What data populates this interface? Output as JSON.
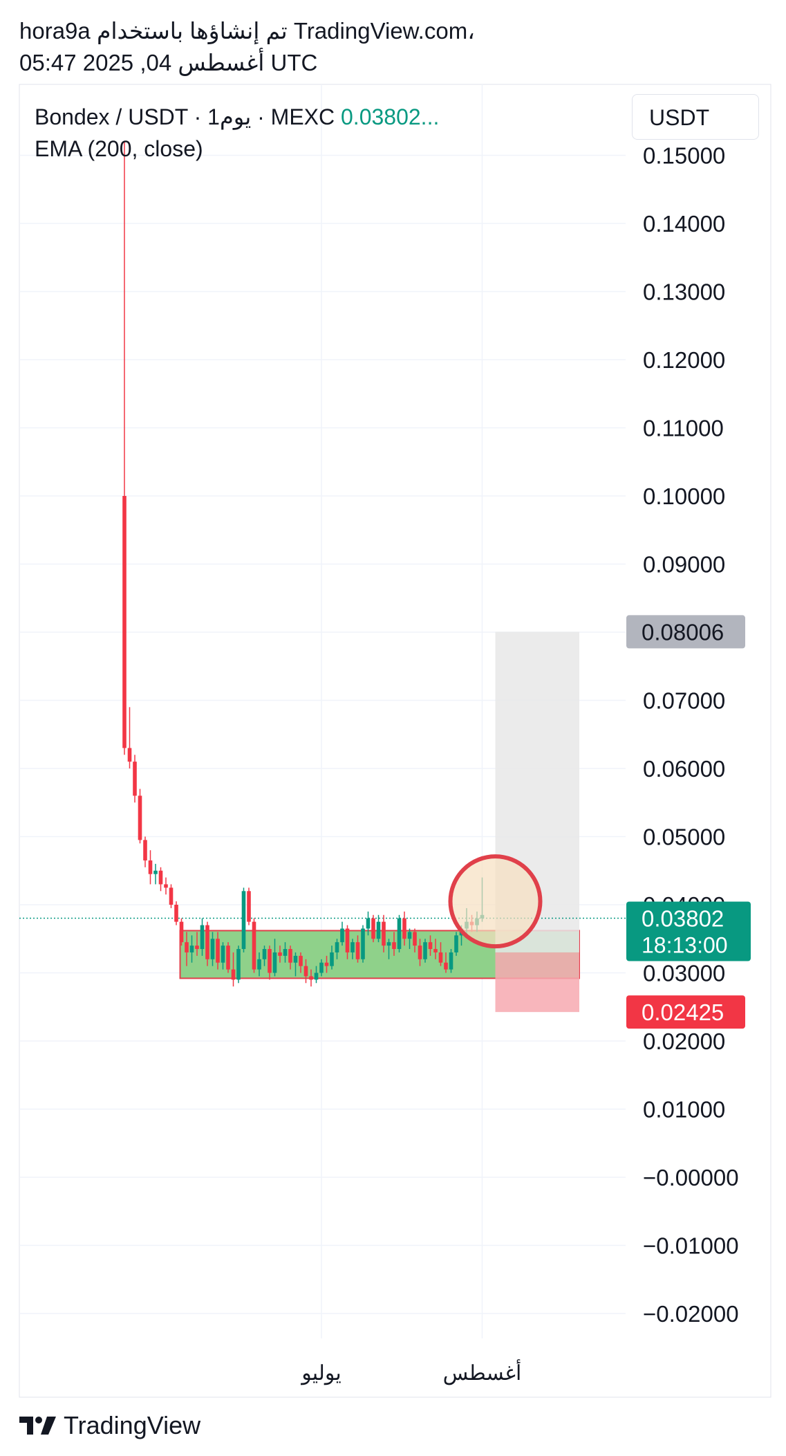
{
  "header": {
    "line1": "hora9a تم إنشاؤها باستخدام TradingView.com،",
    "line2": "05:47 2025 ,04 أغسطس UTC"
  },
  "legend": {
    "symbol": "Bondex / USDT · 1يوم · MEXC",
    "price": "0.03802...",
    "indicator": "EMA (200, close)"
  },
  "unit_selector": "USDT",
  "footer": {
    "brand": "TradingView",
    "logo": "tradingview-logo-icon"
  },
  "colors": {
    "up": "#089981",
    "down": "#f23645",
    "zone_fill": "#8fd18a",
    "zone_border": "#e0404a",
    "target_fill": "#e8e8e8",
    "stop_fill": "#f7a9b0",
    "circle": "#f7e0c0",
    "grid": "#f0f3fa"
  },
  "chart_data": {
    "type": "candlestick",
    "y_axis": {
      "ylim": [
        -0.025,
        0.155
      ],
      "ticks": [
        0.15,
        0.14,
        0.13,
        0.12,
        0.11,
        0.1,
        0.09,
        0.08,
        0.07,
        0.06,
        0.05,
        0.04,
        0.03,
        0.02,
        0.01,
        0.0,
        -0.01,
        -0.02
      ],
      "tick_labels": [
        "0.15000",
        "0.14000",
        "0.13000",
        "0.12000",
        "0.11000",
        "0.10000",
        "0.09000",
        "0.08000",
        "0.07000",
        "0.06000",
        "0.05000",
        "0.04000",
        "0.03000",
        "0.02000",
        "0.01000",
        "−0.00000",
        "−0.01000",
        "−0.02000"
      ]
    },
    "x_axis": {
      "labels": [
        {
          "text": "يوليو",
          "index": 38
        },
        {
          "text": "أغسطس",
          "index": 69
        }
      ],
      "visible_bars": 93
    },
    "price_labels": [
      {
        "value": 0.08006,
        "text": "0.08006",
        "kind": "target"
      },
      {
        "value": 0.03802,
        "text": "0.03802",
        "sub": "18:13:00",
        "kind": "current"
      },
      {
        "value": 0.02425,
        "text": "0.02425",
        "kind": "stop"
      }
    ],
    "current_price": 0.03802,
    "accumulation_zone": {
      "start_index": 11,
      "end_index": 93,
      "top": 0.0362,
      "bottom": 0.0292
    },
    "position": {
      "start_index": 71,
      "end_index": 83,
      "entry": 0.033,
      "target": 0.08006,
      "stop": 0.02425
    },
    "highlight": {
      "index": 71,
      "price": 0.041
    },
    "candles": [
      {
        "o": 0.1,
        "h": 0.152,
        "l": 0.062,
        "c": 0.063
      },
      {
        "o": 0.063,
        "h": 0.069,
        "l": 0.06,
        "c": 0.061
      },
      {
        "o": 0.061,
        "h": 0.062,
        "l": 0.055,
        "c": 0.056
      },
      {
        "o": 0.056,
        "h": 0.057,
        "l": 0.049,
        "c": 0.0495
      },
      {
        "o": 0.0495,
        "h": 0.05,
        "l": 0.0455,
        "c": 0.0465
      },
      {
        "o": 0.0465,
        "h": 0.048,
        "l": 0.043,
        "c": 0.0445
      },
      {
        "o": 0.0445,
        "h": 0.046,
        "l": 0.043,
        "c": 0.045
      },
      {
        "o": 0.045,
        "h": 0.0455,
        "l": 0.042,
        "c": 0.043
      },
      {
        "o": 0.043,
        "h": 0.044,
        "l": 0.0415,
        "c": 0.0425
      },
      {
        "o": 0.0425,
        "h": 0.043,
        "l": 0.0395,
        "c": 0.04
      },
      {
        "o": 0.04,
        "h": 0.0405,
        "l": 0.037,
        "c": 0.0375
      },
      {
        "o": 0.0375,
        "h": 0.038,
        "l": 0.034,
        "c": 0.0345
      },
      {
        "o": 0.0345,
        "h": 0.036,
        "l": 0.031,
        "c": 0.033
      },
      {
        "o": 0.033,
        "h": 0.0355,
        "l": 0.0315,
        "c": 0.034
      },
      {
        "o": 0.034,
        "h": 0.036,
        "l": 0.0325,
        "c": 0.0335
      },
      {
        "o": 0.0335,
        "h": 0.038,
        "l": 0.0325,
        "c": 0.037
      },
      {
        "o": 0.037,
        "h": 0.0375,
        "l": 0.031,
        "c": 0.032
      },
      {
        "o": 0.032,
        "h": 0.036,
        "l": 0.031,
        "c": 0.035
      },
      {
        "o": 0.035,
        "h": 0.036,
        "l": 0.0305,
        "c": 0.0315
      },
      {
        "o": 0.0315,
        "h": 0.0345,
        "l": 0.0305,
        "c": 0.034
      },
      {
        "o": 0.034,
        "h": 0.0345,
        "l": 0.03,
        "c": 0.0305
      },
      {
        "o": 0.0305,
        "h": 0.033,
        "l": 0.028,
        "c": 0.029
      },
      {
        "o": 0.029,
        "h": 0.034,
        "l": 0.0285,
        "c": 0.0335
      },
      {
        "o": 0.0335,
        "h": 0.0425,
        "l": 0.033,
        "c": 0.042
      },
      {
        "o": 0.042,
        "h": 0.0425,
        "l": 0.037,
        "c": 0.0375
      },
      {
        "o": 0.0375,
        "h": 0.038,
        "l": 0.03,
        "c": 0.0305
      },
      {
        "o": 0.0305,
        "h": 0.033,
        "l": 0.0295,
        "c": 0.032
      },
      {
        "o": 0.032,
        "h": 0.034,
        "l": 0.031,
        "c": 0.0335
      },
      {
        "o": 0.0335,
        "h": 0.034,
        "l": 0.029,
        "c": 0.03
      },
      {
        "o": 0.03,
        "h": 0.035,
        "l": 0.0295,
        "c": 0.033
      },
      {
        "o": 0.033,
        "h": 0.034,
        "l": 0.0315,
        "c": 0.0325
      },
      {
        "o": 0.0325,
        "h": 0.0345,
        "l": 0.0315,
        "c": 0.0335
      },
      {
        "o": 0.0335,
        "h": 0.034,
        "l": 0.0305,
        "c": 0.0315
      },
      {
        "o": 0.0315,
        "h": 0.033,
        "l": 0.0295,
        "c": 0.0325
      },
      {
        "o": 0.0325,
        "h": 0.033,
        "l": 0.03,
        "c": 0.031
      },
      {
        "o": 0.031,
        "h": 0.032,
        "l": 0.0285,
        "c": 0.0295
      },
      {
        "o": 0.0295,
        "h": 0.0305,
        "l": 0.028,
        "c": 0.029
      },
      {
        "o": 0.029,
        "h": 0.031,
        "l": 0.0285,
        "c": 0.03
      },
      {
        "o": 0.03,
        "h": 0.032,
        "l": 0.0295,
        "c": 0.0315
      },
      {
        "o": 0.0315,
        "h": 0.0325,
        "l": 0.03,
        "c": 0.031
      },
      {
        "o": 0.031,
        "h": 0.034,
        "l": 0.0305,
        "c": 0.033
      },
      {
        "o": 0.033,
        "h": 0.035,
        "l": 0.032,
        "c": 0.0345
      },
      {
        "o": 0.0345,
        "h": 0.0375,
        "l": 0.034,
        "c": 0.0365
      },
      {
        "o": 0.0365,
        "h": 0.037,
        "l": 0.032,
        "c": 0.033
      },
      {
        "o": 0.033,
        "h": 0.035,
        "l": 0.032,
        "c": 0.0345
      },
      {
        "o": 0.0345,
        "h": 0.0355,
        "l": 0.0315,
        "c": 0.032
      },
      {
        "o": 0.032,
        "h": 0.037,
        "l": 0.0315,
        "c": 0.0365
      },
      {
        "o": 0.0365,
        "h": 0.039,
        "l": 0.0355,
        "c": 0.038
      },
      {
        "o": 0.038,
        "h": 0.0385,
        "l": 0.0345,
        "c": 0.035
      },
      {
        "o": 0.035,
        "h": 0.0385,
        "l": 0.0345,
        "c": 0.0375
      },
      {
        "o": 0.0375,
        "h": 0.0385,
        "l": 0.033,
        "c": 0.034
      },
      {
        "o": 0.034,
        "h": 0.035,
        "l": 0.032,
        "c": 0.0345
      },
      {
        "o": 0.0345,
        "h": 0.036,
        "l": 0.0325,
        "c": 0.0335
      },
      {
        "o": 0.0335,
        "h": 0.0385,
        "l": 0.033,
        "c": 0.038
      },
      {
        "o": 0.038,
        "h": 0.039,
        "l": 0.034,
        "c": 0.035
      },
      {
        "o": 0.035,
        "h": 0.0365,
        "l": 0.0335,
        "c": 0.036
      },
      {
        "o": 0.036,
        "h": 0.0365,
        "l": 0.033,
        "c": 0.034
      },
      {
        "o": 0.034,
        "h": 0.035,
        "l": 0.031,
        "c": 0.032
      },
      {
        "o": 0.032,
        "h": 0.035,
        "l": 0.0315,
        "c": 0.0345
      },
      {
        "o": 0.0345,
        "h": 0.0355,
        "l": 0.0325,
        "c": 0.0335
      },
      {
        "o": 0.0335,
        "h": 0.035,
        "l": 0.032,
        "c": 0.033
      },
      {
        "o": 0.033,
        "h": 0.0345,
        "l": 0.031,
        "c": 0.0315
      },
      {
        "o": 0.0315,
        "h": 0.033,
        "l": 0.03,
        "c": 0.0305
      },
      {
        "o": 0.0305,
        "h": 0.0335,
        "l": 0.03,
        "c": 0.033
      },
      {
        "o": 0.033,
        "h": 0.036,
        "l": 0.0325,
        "c": 0.0355
      },
      {
        "o": 0.0355,
        "h": 0.037,
        "l": 0.034,
        "c": 0.0365
      },
      {
        "o": 0.0365,
        "h": 0.0395,
        "l": 0.0355,
        "c": 0.0375
      },
      {
        "o": 0.0375,
        "h": 0.0385,
        "l": 0.036,
        "c": 0.037
      },
      {
        "o": 0.037,
        "h": 0.039,
        "l": 0.036,
        "c": 0.038
      },
      {
        "o": 0.038,
        "h": 0.044,
        "l": 0.0375,
        "c": 0.0385
      }
    ]
  }
}
